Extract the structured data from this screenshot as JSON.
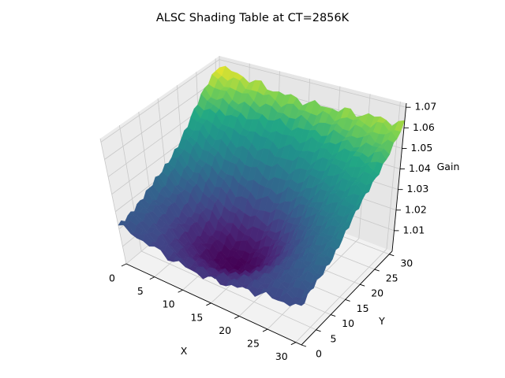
{
  "chart_data": {
    "type": "surface",
    "title": "ALSC Shading Table at CT=2856K",
    "xlabel": "X",
    "ylabel": "Y",
    "zlabel": "Gain",
    "xlim": [
      0,
      31
    ],
    "ylim": [
      0,
      31
    ],
    "zlim": [
      1.0,
      1.072
    ],
    "xticks": [
      "0",
      "5",
      "10",
      "15",
      "20",
      "25",
      "30"
    ],
    "yticks": [
      "0",
      "5",
      "10",
      "15",
      "20",
      "25",
      "30"
    ],
    "zticks": [
      "1.01",
      "1.02",
      "1.03",
      "1.04",
      "1.05",
      "1.06",
      "1.07"
    ],
    "colormap": "viridis",
    "grid_shape": [
      32,
      32
    ],
    "corner_gain": {
      "x0_y0": 1.025,
      "x31_y0": 1.02,
      "x0_y31": 1.068,
      "x31_y31": 1.062
    },
    "center_gain": 1.0,
    "grid": true
  }
}
